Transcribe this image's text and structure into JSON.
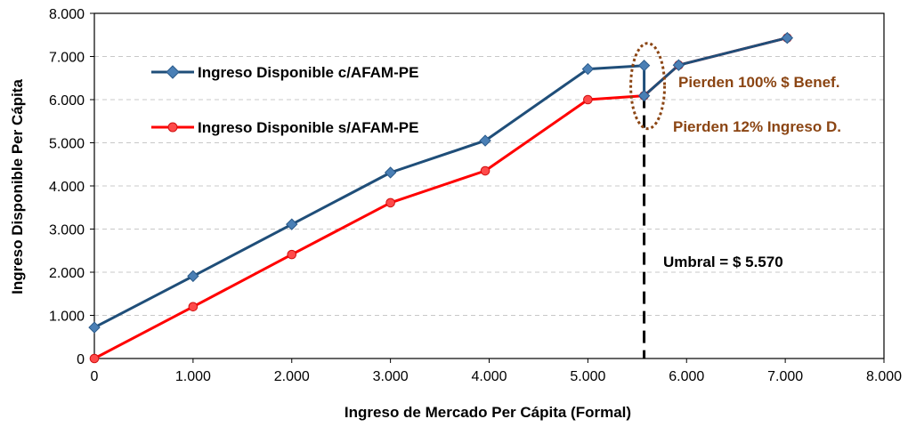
{
  "chart_data": {
    "type": "line",
    "title": "",
    "xlabel": "Ingreso de Mercado Per Cápita (Formal)",
    "ylabel": "Ingreso Disponible Per Cápita",
    "xlim": [
      0,
      8000
    ],
    "ylim": [
      0,
      8000
    ],
    "x_ticks": [
      0,
      1000,
      2000,
      3000,
      4000,
      5000,
      6000,
      7000,
      8000
    ],
    "y_ticks": [
      0,
      1000,
      2000,
      3000,
      4000,
      5000,
      6000,
      7000,
      8000
    ],
    "x_tick_labels": [
      "0",
      "1.000",
      "2.000",
      "3.000",
      "4.000",
      "5.000",
      "6.000",
      "7.000",
      "8.000"
    ],
    "y_tick_labels": [
      "0",
      "1.000",
      "2.000",
      "3.000",
      "4.000",
      "5.000",
      "6.000",
      "7.000",
      "8.000"
    ],
    "grid": "horizontal dashed",
    "legend_position": "top-left",
    "series": [
      {
        "name": "Ingreso Disponible c/AFAM-PE",
        "color": "#1f4e79",
        "marker": "diamond",
        "points": [
          [
            0,
            720
          ],
          [
            1000,
            1910
          ],
          [
            2000,
            3110
          ],
          [
            3000,
            4310
          ],
          [
            3960,
            5050
          ],
          [
            5000,
            6710
          ],
          [
            5570,
            6790
          ],
          [
            5570,
            6090
          ],
          [
            5920,
            6800
          ],
          [
            7020,
            7430
          ]
        ]
      },
      {
        "name": "Ingreso Disponible s/AFAM-PE",
        "color": "#ff0000",
        "marker": "circle",
        "points": [
          [
            0,
            0
          ],
          [
            1000,
            1200
          ],
          [
            2000,
            2410
          ],
          [
            3000,
            3610
          ],
          [
            3960,
            4350
          ],
          [
            5000,
            6000
          ],
          [
            5570,
            6090
          ],
          [
            5920,
            6800
          ],
          [
            7020,
            7430
          ]
        ]
      }
    ],
    "threshold": {
      "x": 5570,
      "label": "Umbral = $ 5.570"
    },
    "annotations": [
      {
        "text": "Pierden 100% $ Benef.",
        "color": "#8b4513"
      },
      {
        "text": "Pierden 12% Ingreso D.",
        "color": "#8b4513"
      }
    ],
    "highlight_ellipse_color": "#8b4513"
  }
}
